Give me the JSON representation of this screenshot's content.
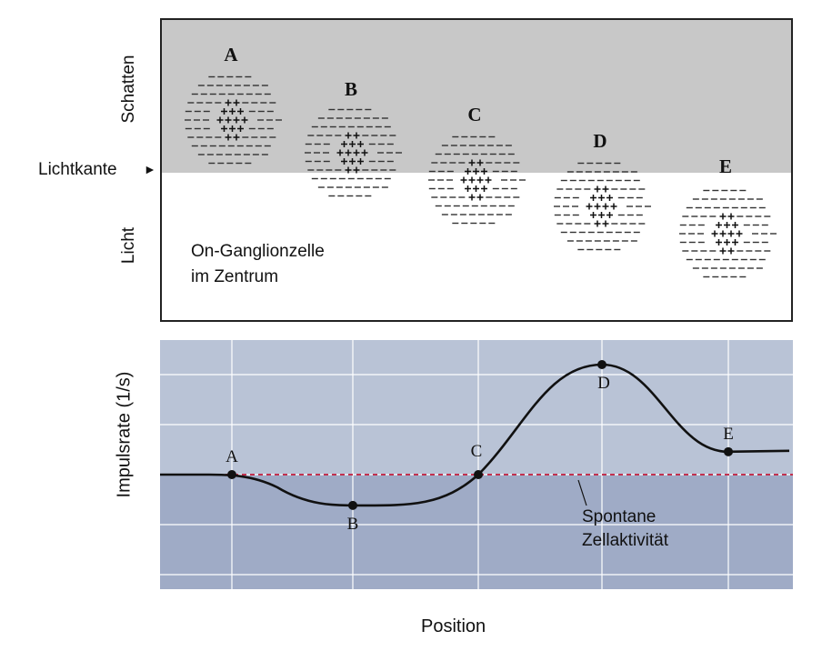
{
  "top_panel": {
    "axis_top": "Schatten",
    "axis_bottom": "Licht",
    "edge_label": "Lichtkante",
    "edge_marker": "►",
    "cell_caption_line1": "On-Ganglionzelle",
    "cell_caption_line2": "im Zentrum",
    "receptive_fields": [
      {
        "letter": "A"
      },
      {
        "letter": "B"
      },
      {
        "letter": "C"
      },
      {
        "letter": "D"
      },
      {
        "letter": "E"
      }
    ]
  },
  "chart_data": {
    "type": "line",
    "ylabel": "Impulsrate (1/s)",
    "xlabel": "Position",
    "baseline_label_line1": "Spontane",
    "baseline_label_line2": "Zellaktivität",
    "points": [
      {
        "label": "A",
        "x": 1,
        "y": 0.0
      },
      {
        "label": "B",
        "x": 2,
        "y": -0.35
      },
      {
        "label": "C",
        "x": 3,
        "y": 0.0
      },
      {
        "label": "D",
        "x": 4,
        "y": 1.25
      },
      {
        "label": "E",
        "x": 5,
        "y": 0.26
      }
    ],
    "baseline": 0.0,
    "colors": {
      "upper_band": "#b9c3d6",
      "lower_band": "#9fabc6",
      "grid": "#ffffff",
      "curve": "#111111",
      "baseline": "#c2314f"
    }
  }
}
